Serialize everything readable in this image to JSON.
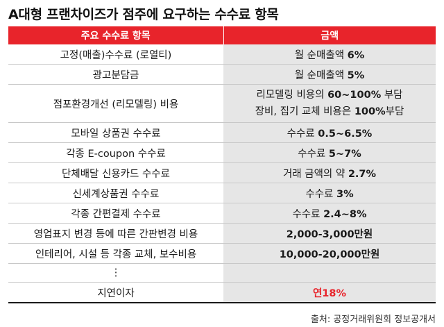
{
  "title": "A대형 프랜차이즈가 점주에 요구하는 수수료 항목",
  "table": {
    "headers": [
      "주요 수수료 항목",
      "금액"
    ],
    "rows": [
      {
        "item": "고정(매출)수수료 (로열티)",
        "amount_prefix": "월 순매출액 ",
        "amount_bold": "6%"
      },
      {
        "item": "광고분담금",
        "amount_prefix": "월 순매출액 ",
        "amount_bold": "5%"
      },
      {
        "item": "점포환경개선 (리모델링) 비용",
        "line1_prefix": "리모델링 비용의 ",
        "line1_bold": "60~100%",
        "line1_suffix": " 부담",
        "line2_prefix": "장비, 집기 교체 비용은 ",
        "line2_bold": "100%",
        "line2_suffix": "부담"
      },
      {
        "item": "모바일 상품권 수수료",
        "amount_prefix": "수수료 ",
        "amount_bold": "0.5~6.5%"
      },
      {
        "item": "각종 E-coupon 수수료",
        "amount_prefix": "수수료 ",
        "amount_bold": "5~7%"
      },
      {
        "item": "단체배달 신용카드 수수료",
        "amount_prefix": "거래 금액의 약 ",
        "amount_bold": "2.7%"
      },
      {
        "item": "신세계상품권 수수료",
        "amount_prefix": "수수료 ",
        "amount_bold": "3%"
      },
      {
        "item": "각종 간편결제 수수료",
        "amount_prefix": "수수료 ",
        "amount_bold": "2.4~8%"
      },
      {
        "item": "영업표지 변경 등에 따른 간판변경 비용",
        "amount_bold": "2,000-3,000만원"
      },
      {
        "item": "인테리어, 시설 등 각종 교체, 보수비용",
        "amount_bold": "10,000-20,000만원"
      },
      {
        "item": "⋮",
        "amount_bold": ""
      },
      {
        "item": "지연이자",
        "amount_red": "연18%"
      }
    ]
  },
  "source": "출처: 공정거래위원회 정보공개서",
  "colors": {
    "accent": "#e8242b",
    "amount_bg": "#e6e6e6"
  }
}
